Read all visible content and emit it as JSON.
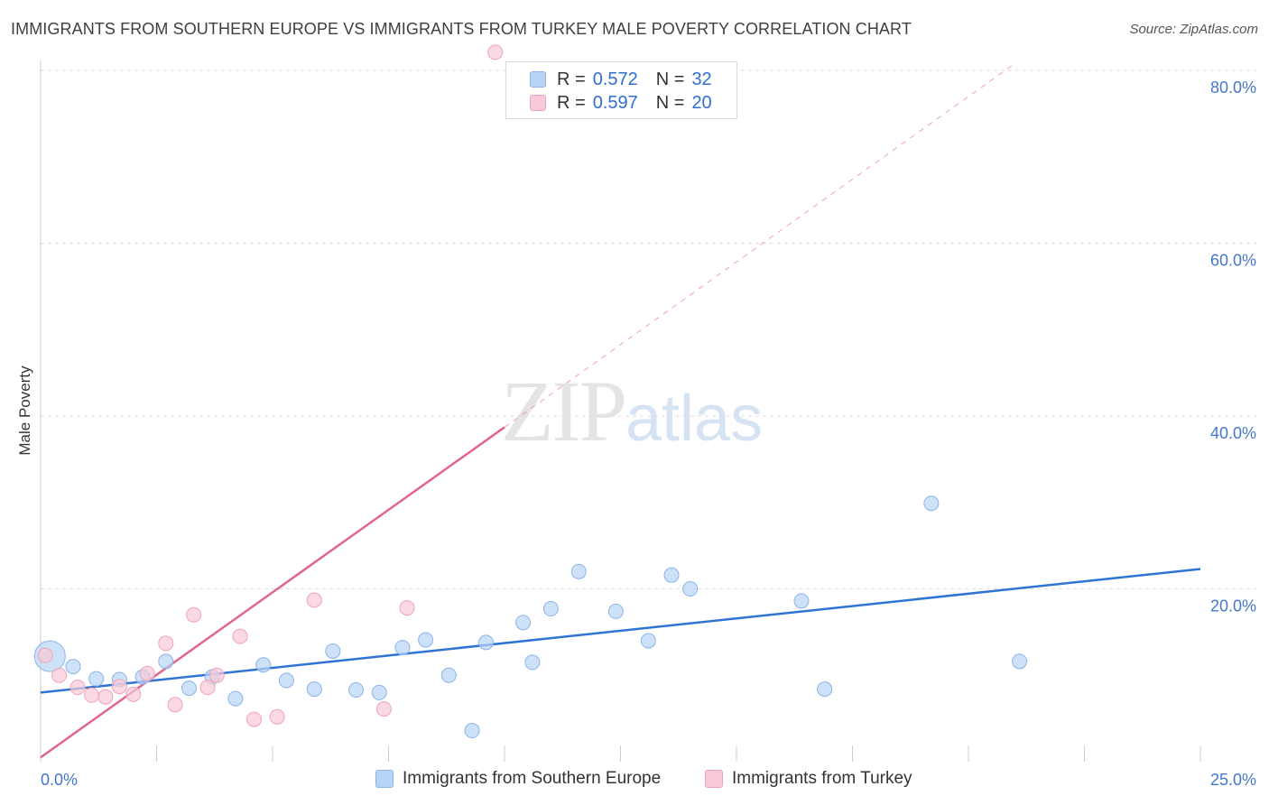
{
  "title": "IMMIGRANTS FROM SOUTHERN EUROPE VS IMMIGRANTS FROM TURKEY MALE POVERTY CORRELATION CHART",
  "source": "Source: ZipAtlas.com",
  "watermark": {
    "zip": "ZIP",
    "atlas": "atlas"
  },
  "legend_top": [
    {
      "r_label": "R = ",
      "r_value": "0.572",
      "n_label": "N = ",
      "n_value": "32"
    },
    {
      "r_label": "R = ",
      "r_value": "0.597",
      "n_label": "N = ",
      "n_value": "20"
    }
  ],
  "colors": {
    "blue_fill": "#b8d4f5",
    "blue_stroke": "#8ab4e8",
    "blue_line": "#2f73d4",
    "pink_fill": "#f8c9d6",
    "pink_stroke": "#eea3ba",
    "pink_line": "#e0648e",
    "grid": "#dddddd",
    "tick_label": "#4477cc"
  },
  "chart_data": {
    "type": "scatter",
    "xlabel": "",
    "ylabel": "Male Poverty",
    "xlim": [
      0,
      25
    ],
    "ylim": [
      0,
      80
    ],
    "x_tick_labels": [
      {
        "x": 0,
        "label": "0.0%"
      },
      {
        "x": 25,
        "label": "25.0%"
      }
    ],
    "y_tick_labels": [
      {
        "y": 20,
        "label": "20.0%"
      },
      {
        "y": 40,
        "label": "40.0%"
      },
      {
        "y": 60,
        "label": "60.0%"
      },
      {
        "y": 80,
        "label": "80.0%"
      }
    ],
    "series": [
      {
        "name": "Immigrants from Southern Europe",
        "color": "blue",
        "R": 0.572,
        "N": 32,
        "points": [
          {
            "x": 0.2,
            "y": 12.2,
            "big": true
          },
          {
            "x": 0.7,
            "y": 11.0
          },
          {
            "x": 1.2,
            "y": 9.6
          },
          {
            "x": 1.7,
            "y": 9.5
          },
          {
            "x": 2.2,
            "y": 9.8
          },
          {
            "x": 2.7,
            "y": 11.6
          },
          {
            "x": 3.2,
            "y": 8.5
          },
          {
            "x": 3.7,
            "y": 9.8
          },
          {
            "x": 4.2,
            "y": 7.3
          },
          {
            "x": 4.8,
            "y": 11.2
          },
          {
            "x": 5.3,
            "y": 9.4
          },
          {
            "x": 5.9,
            "y": 8.4
          },
          {
            "x": 6.3,
            "y": 12.8
          },
          {
            "x": 6.8,
            "y": 8.3
          },
          {
            "x": 7.3,
            "y": 8.0
          },
          {
            "x": 7.8,
            "y": 13.2
          },
          {
            "x": 8.3,
            "y": 14.1
          },
          {
            "x": 8.8,
            "y": 10.0
          },
          {
            "x": 9.3,
            "y": 3.6
          },
          {
            "x": 9.6,
            "y": 13.8
          },
          {
            "x": 10.4,
            "y": 16.1
          },
          {
            "x": 10.6,
            "y": 11.5
          },
          {
            "x": 11.0,
            "y": 17.7
          },
          {
            "x": 11.6,
            "y": 22.0
          },
          {
            "x": 12.4,
            "y": 17.4
          },
          {
            "x": 13.1,
            "y": 14.0
          },
          {
            "x": 13.6,
            "y": 21.6
          },
          {
            "x": 14.0,
            "y": 20.0
          },
          {
            "x": 16.4,
            "y": 18.6
          },
          {
            "x": 16.9,
            "y": 8.4
          },
          {
            "x": 19.2,
            "y": 29.9
          },
          {
            "x": 21.1,
            "y": 11.6
          }
        ],
        "trend": {
          "x0": 0,
          "y0": 8.0,
          "x1": 25,
          "y1": 22.3
        }
      },
      {
        "name": "Immigrants from Turkey",
        "color": "pink",
        "R": 0.597,
        "N": 20,
        "points": [
          {
            "x": 0.1,
            "y": 12.3
          },
          {
            "x": 0.4,
            "y": 10.0
          },
          {
            "x": 0.8,
            "y": 8.6
          },
          {
            "x": 1.1,
            "y": 7.7
          },
          {
            "x": 1.4,
            "y": 7.5
          },
          {
            "x": 1.7,
            "y": 8.7
          },
          {
            "x": 2.0,
            "y": 7.8
          },
          {
            "x": 2.3,
            "y": 10.2
          },
          {
            "x": 2.7,
            "y": 13.7
          },
          {
            "x": 2.9,
            "y": 6.6
          },
          {
            "x": 3.3,
            "y": 17.0
          },
          {
            "x": 3.6,
            "y": 8.6
          },
          {
            "x": 3.8,
            "y": 10.0
          },
          {
            "x": 4.3,
            "y": 14.5
          },
          {
            "x": 4.6,
            "y": 4.9
          },
          {
            "x": 5.1,
            "y": 5.2
          },
          {
            "x": 5.9,
            "y": 18.7
          },
          {
            "x": 7.4,
            "y": 6.1
          },
          {
            "x": 7.9,
            "y": 17.8
          },
          {
            "x": 9.8,
            "y": 82.1
          }
        ],
        "trend": {
          "x0": 0,
          "y0": 0.5,
          "x1": 10.0,
          "y1": 38.7
        },
        "trend_extension": {
          "x0": 10.0,
          "y0": 38.7,
          "x1": 21.0,
          "y1": 80.8
        }
      }
    ]
  }
}
